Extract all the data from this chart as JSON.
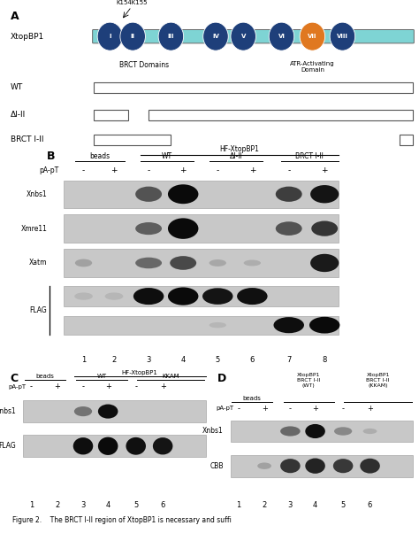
{
  "bg": "#ffffff",
  "blot_bg": "#cccccc",
  "blot_bg2": "#c8c8c8",
  "domain_colors": [
    "#1e3f7a",
    "#1e3f7a",
    "#1e3f7a",
    "#1e3f7a",
    "#1e3f7a",
    "#1e3f7a",
    "#e07820",
    "#1e3f7a"
  ],
  "domain_labels": [
    "I",
    "II",
    "III",
    "IV",
    "V",
    "VI",
    "VII",
    "VIII"
  ],
  "bar_color": "#7ed4d4",
  "caption": "Figure 2.    The BRCT I-II region of XtopBP1 is necessary and suffi"
}
